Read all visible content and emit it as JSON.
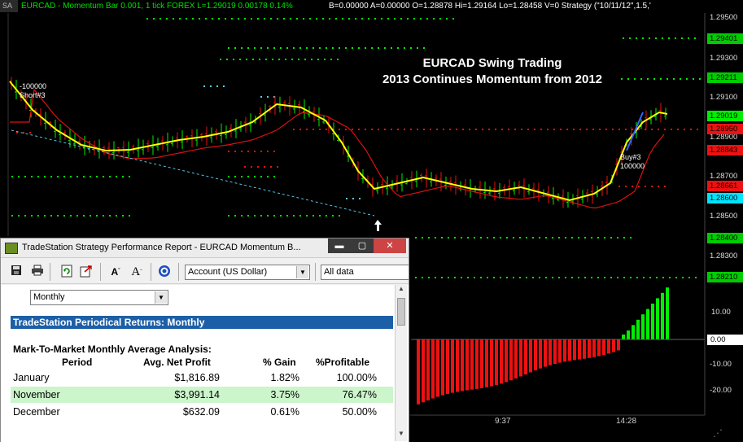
{
  "header": {
    "sa_label": "SA",
    "symbol_info": "EURCAD - Momentum Bar 0.001, 1 tick  FOREX  L=1.29019  0.00178   0.14%",
    "stats": "B=0.00000  A=0.00000  O=1.28878  Hi=1.29164  Lo=1.28458  V=0  Strategy (\"10/11/12\",1.5,'"
  },
  "chart_title": {
    "line1": "EURCAD Swing Trading",
    "line2": "2013 Continues Momentum from 2012"
  },
  "price_axis": {
    "labels": [
      "1.29500",
      "1.29300",
      "1.29100",
      "1.28900",
      "1.28700",
      "1.28500",
      "1.28300"
    ],
    "tags": [
      {
        "value": "1.29401",
        "bg": "#00cc00",
        "fg": "#000000"
      },
      {
        "value": "1.29211",
        "bg": "#00cc00",
        "fg": "#000000"
      },
      {
        "value": "1.29019",
        "bg": "#00ee00",
        "fg": "#000000"
      },
      {
        "value": "1.28950",
        "bg": "#ee1111",
        "fg": "#000000"
      },
      {
        "value": "1.28843",
        "bg": "#ee1111",
        "fg": "#000000"
      },
      {
        "value": "1.28661",
        "bg": "#ee1111",
        "fg": "#000000"
      },
      {
        "value": "1.28600",
        "bg": "#00e5ff",
        "fg": "#000000"
      },
      {
        "value": "1.28400",
        "bg": "#00cc00",
        "fg": "#000000"
      },
      {
        "value": "1.28210",
        "bg": "#00cc00",
        "fg": "#000000"
      }
    ]
  },
  "indicator_axis": {
    "labels": [
      "10.00",
      "-10.00",
      "-20.00"
    ],
    "zero_tag": "0.00"
  },
  "time_axis": [
    "9:37",
    "14:28"
  ],
  "trades": {
    "short_qty": "-100000",
    "short_label": "Short#3",
    "buy_label": "Buy#3",
    "buy_qty": "100000"
  },
  "colors": {
    "up_bar": "#00ee00",
    "down_bar": "#ee1111",
    "fast_avg": "#ffff00",
    "slow_avg": "#dd1111",
    "trendline": "#55ccee"
  },
  "report": {
    "title": "TradeStation Strategy Performance Report - EURCAD Momentum B...",
    "window_buttons": {
      "minimize": "▬",
      "maximize": "▢",
      "close": "✕"
    },
    "toolbar_icons": [
      "save-icon",
      "print-icon",
      "refresh-icon",
      "export-icon",
      "decrease-font-icon",
      "increase-font-icon",
      "target-icon"
    ],
    "account_select": "Account (US Dollar)",
    "range_select": "All data",
    "period_select": "Monthly",
    "section_header": "TradeStation Periodical Returns: Monthly",
    "sub_header": "Mark-To-Market Monthly Average Analysis:",
    "columns": [
      "Period",
      "Avg. Net Profit",
      "% Gain",
      "%Profitable"
    ],
    "rows": [
      {
        "period": "January",
        "profit": "$1,816.89",
        "gain": "1.82%",
        "profitable": "100.00%",
        "highlight": false
      },
      {
        "period": "November",
        "profit": "$3,991.14",
        "gain": "3.75%",
        "profitable": "76.47%",
        "highlight": true
      },
      {
        "period": "December",
        "profit": "$632.09",
        "gain": "0.61%",
        "profitable": "50.00%",
        "highlight": false
      }
    ]
  }
}
